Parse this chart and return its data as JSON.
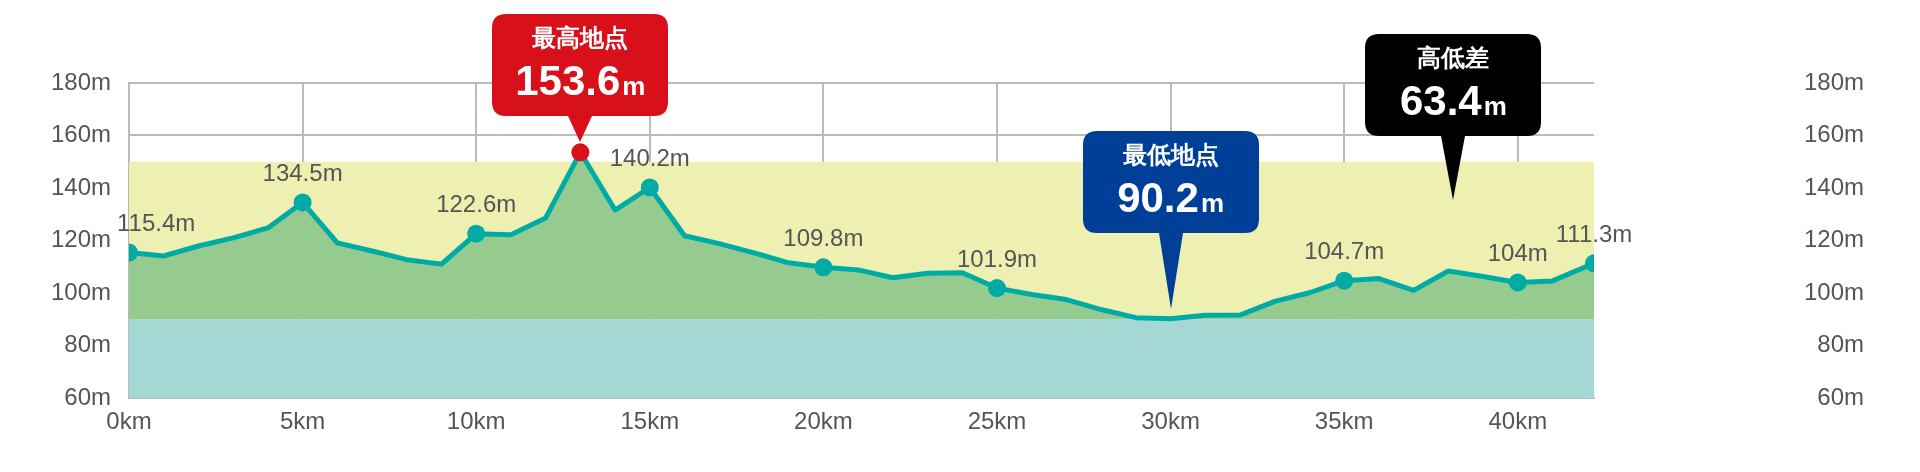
{
  "chart_data": {
    "type": "area",
    "x": [
      0,
      1,
      2,
      3,
      4,
      5,
      6,
      7,
      8,
      9,
      10,
      11,
      12,
      13,
      14,
      15,
      16,
      17,
      18,
      19,
      20,
      21,
      22,
      23,
      24,
      25,
      26,
      27,
      28,
      29,
      30,
      31,
      32,
      33,
      34,
      35,
      36,
      37,
      38,
      39,
      40,
      41,
      42.195
    ],
    "series": [
      {
        "color": "#00aba5",
        "values": [
          115.4,
          114.1,
          117.9,
          121,
          124.8,
          134.5,
          119.1,
          116,
          112.7,
          111,
          122.6,
          122.2,
          128.6,
          153.6,
          131.6,
          140.2,
          121.8,
          118.8,
          115.3,
          111.5,
          109.8,
          108.8,
          105.8,
          107.5,
          107.7,
          101.9,
          99.4,
          97.5,
          93.7,
          90.6,
          90.2,
          91.5,
          91.6,
          96.8,
          100.1,
          104.7,
          105.5,
          101,
          108.4,
          106.3,
          104,
          104.6,
          111.3
        ],
        "value_labels": [
          "115.4m",
          null,
          null,
          null,
          null,
          "134.5m",
          null,
          null,
          null,
          null,
          "122.6m",
          null,
          null,
          null,
          null,
          "140.2m",
          null,
          null,
          null,
          null,
          "109.8m",
          null,
          null,
          null,
          null,
          "101.9m",
          null,
          null,
          null,
          null,
          null,
          null,
          null,
          null,
          null,
          "104.7m",
          null,
          null,
          null,
          null,
          "104m",
          null,
          "111.3m"
        ],
        "colors": [
          "#00aba5",
          "#00aba5",
          "#00aba5",
          "#00aba5",
          "#00aba5",
          "#00aba5",
          "#00aba5",
          "#00aba5",
          "#00aba5",
          "#00aba5",
          "#00aba5",
          "#00aba5",
          "#00aba5",
          "#d7101a",
          "#00aba5",
          "#00aba5",
          "#00aba5",
          "#00aba5",
          "#00aba5",
          "#00aba5",
          "#00aba5",
          "#00aba5",
          "#00aba5",
          "#00aba5",
          "#00aba5",
          "#00aba5",
          "#00aba5",
          "#00aba5",
          "#00aba5",
          "#00aba5",
          "#00aba5",
          "#00aba5",
          "#00aba5",
          "#00aba5",
          "#00aba5",
          "#00aba5",
          "#00aba5",
          "#00aba5",
          "#00aba5",
          "#00aba5",
          "#00aba5",
          "#00aba5",
          "#00aba5"
        ]
      }
    ],
    "xlim": [
      0,
      42.195
    ],
    "xticks": [
      {
        "value": 0,
        "label": "0km"
      },
      {
        "value": 5,
        "label": "5km"
      },
      {
        "value": 10,
        "label": "10km"
      },
      {
        "value": 15,
        "label": "15km"
      },
      {
        "value": 20,
        "label": "20km"
      },
      {
        "value": 25,
        "label": "25km"
      },
      {
        "value": 30,
        "label": "30km"
      },
      {
        "value": 35,
        "label": "35km"
      },
      {
        "value": 40,
        "label": "40km"
      }
    ],
    "ylim": [
      60,
      180
    ],
    "yticks": [
      {
        "value": 60,
        "label": "60m"
      },
      {
        "value": 80,
        "label": "80m"
      },
      {
        "value": 100,
        "label": "100m"
      },
      {
        "value": 120,
        "label": "120m"
      },
      {
        "value": 140,
        "label": "140m"
      },
      {
        "value": 160,
        "label": "160m"
      },
      {
        "value": 180,
        "label": "180m"
      }
    ],
    "y2lim": [
      60,
      180
    ],
    "y2ticks": [
      {
        "value": 60,
        "label": "60m"
      },
      {
        "value": 80,
        "label": "80m"
      },
      {
        "value": 100,
        "label": "100m"
      },
      {
        "value": 120,
        "label": "120m"
      },
      {
        "value": 140,
        "label": "140m"
      },
      {
        "value": 160,
        "label": "160m"
      },
      {
        "value": 180,
        "label": "180m"
      }
    ],
    "bands": [
      {
        "axis": "y",
        "from": 90,
        "to": 150,
        "color": "#edf0b0"
      },
      {
        "axis": "y",
        "from": 60,
        "to": 90,
        "color": "#a5d8d5"
      }
    ],
    "annotations": [
      {
        "text": "最高地点\n153.6m",
        "x": 13,
        "y": 153.6
      },
      {
        "text": "最低地点\n90.2m",
        "x": 30,
        "y": 90.2
      },
      "高低差\n63.4m"
    ],
    "grid": true,
    "legend": false
  }
}
